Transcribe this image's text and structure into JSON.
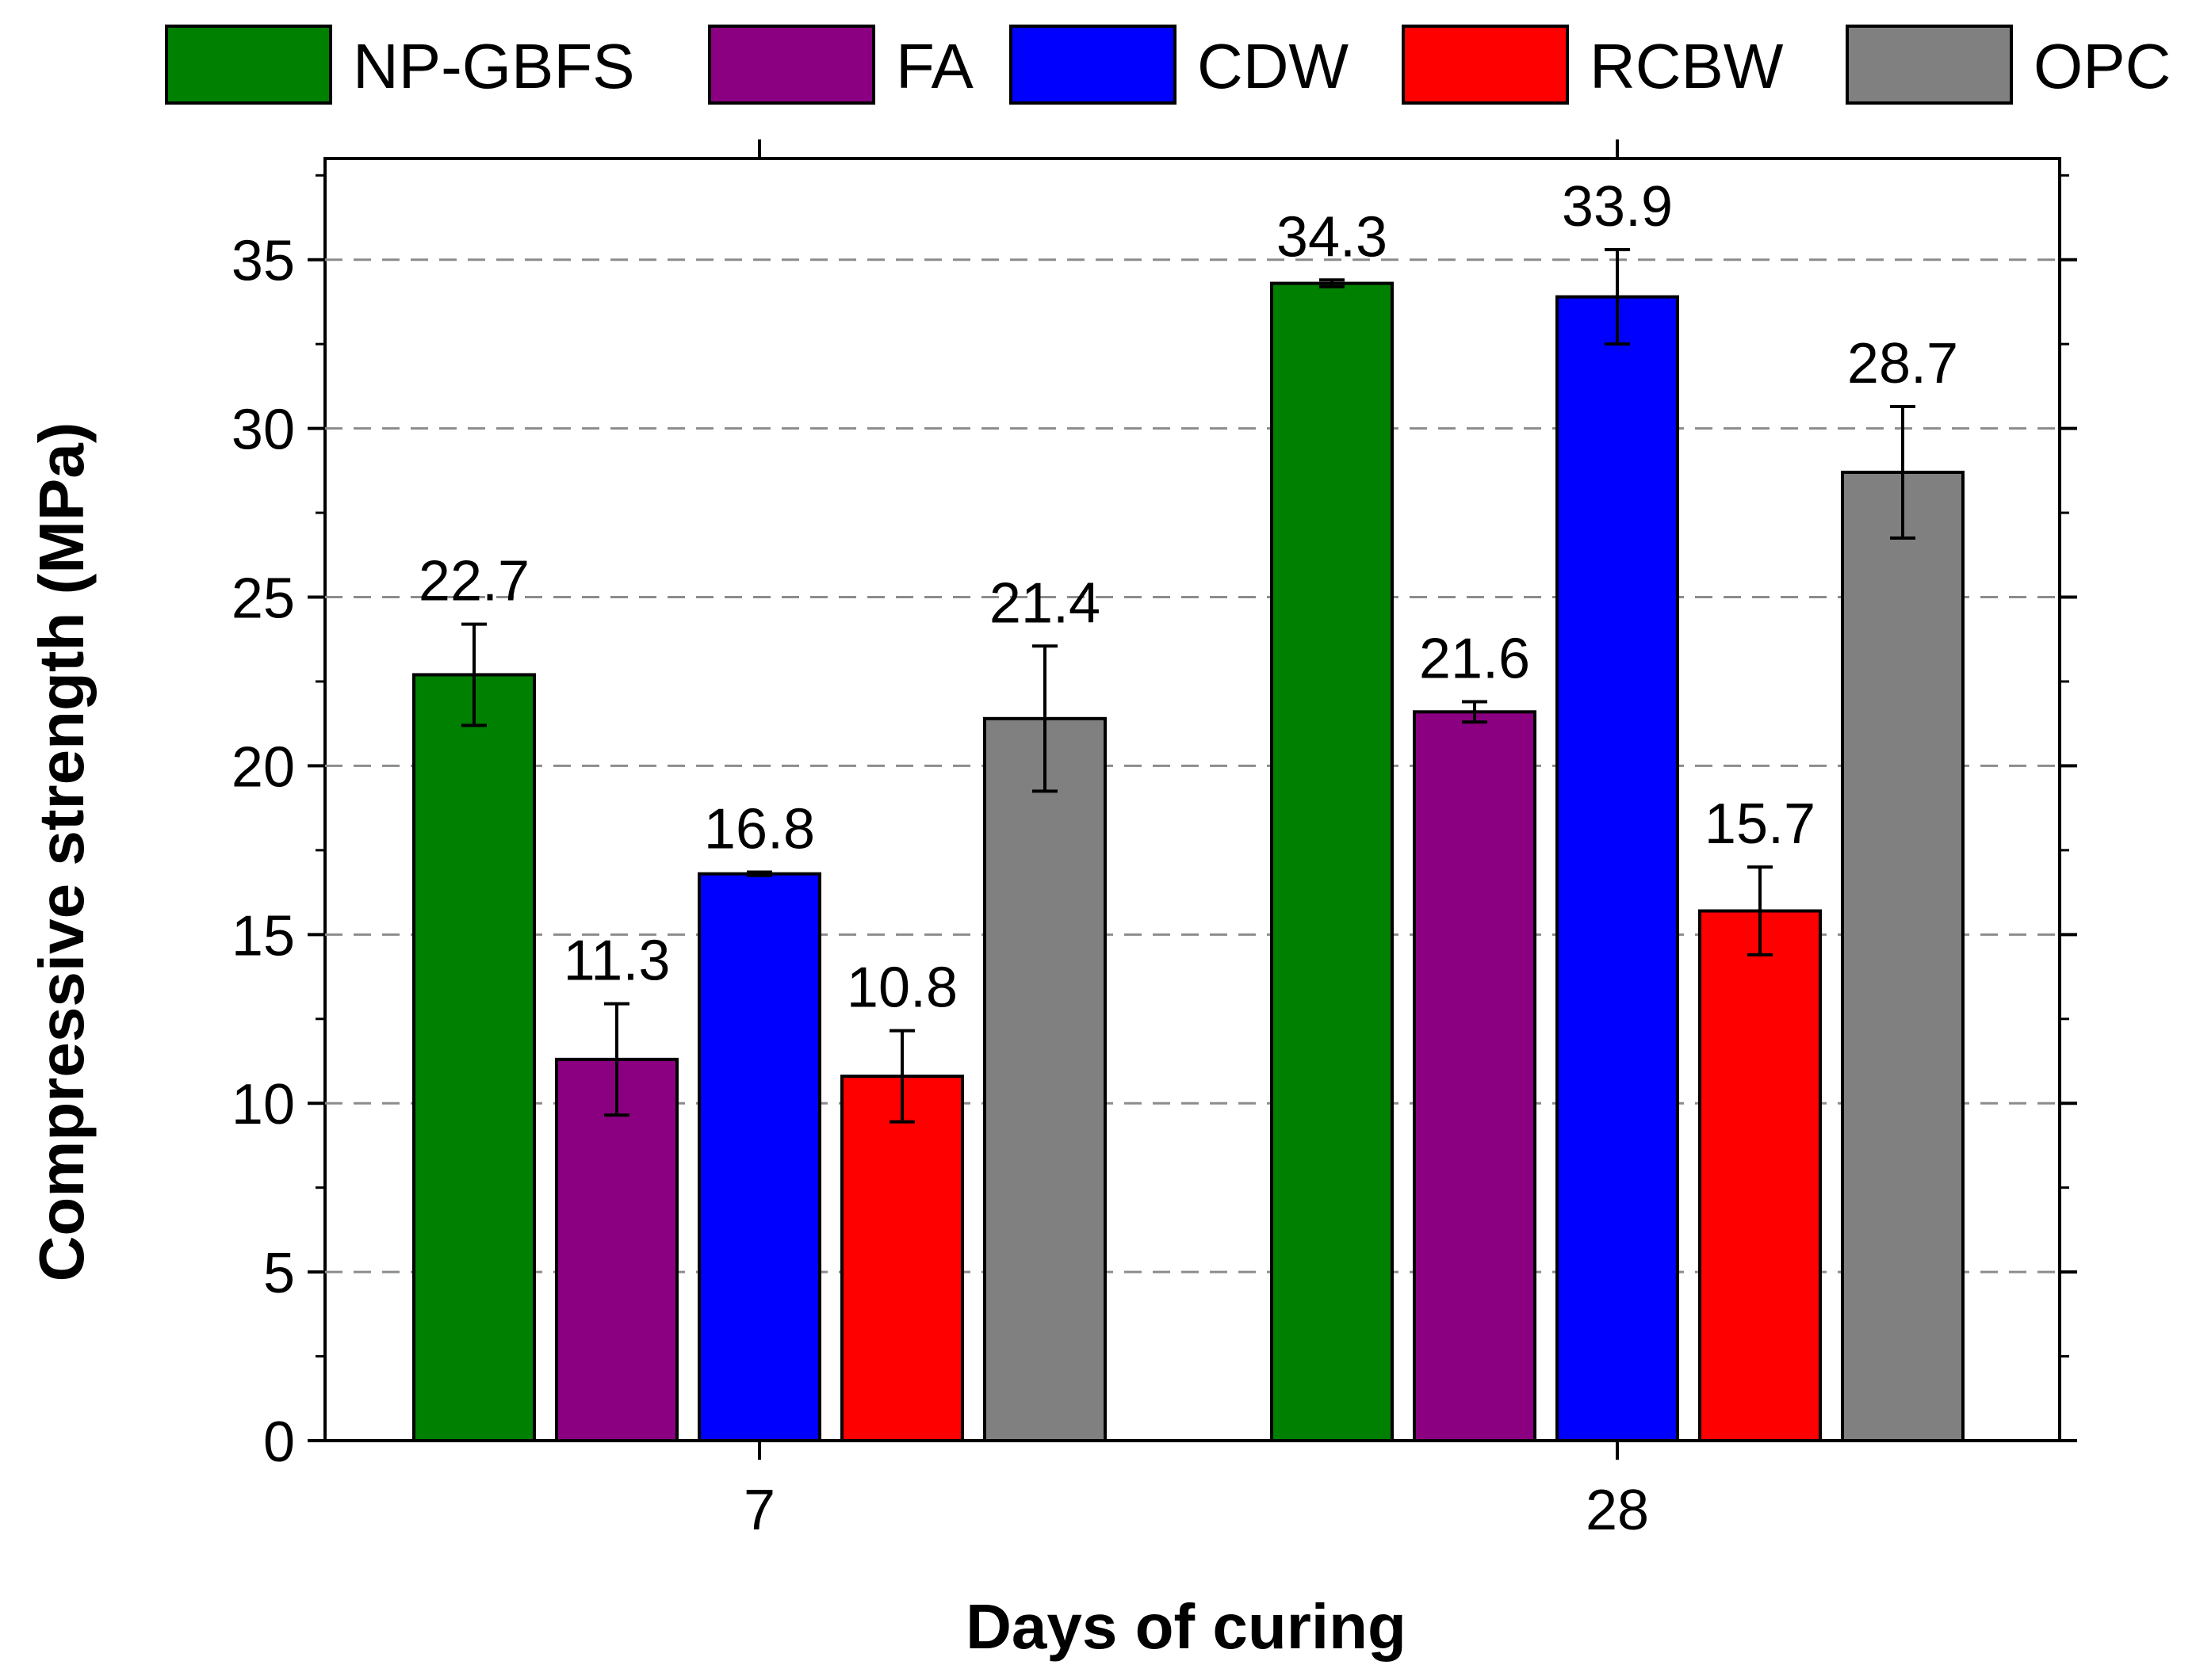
{
  "chart_data": {
    "type": "bar",
    "categories": [
      "7",
      "28"
    ],
    "series": [
      {
        "name": "NP-GBFS",
        "color": "#008000",
        "values": [
          22.7,
          34.3
        ],
        "errors": [
          1.5,
          0.1
        ]
      },
      {
        "name": "FA",
        "color": "#8B0080",
        "values": [
          11.3,
          21.6
        ],
        "errors": [
          1.65,
          0.3
        ]
      },
      {
        "name": "CDW",
        "color": "#0000FF",
        "values": [
          16.8,
          33.9
        ],
        "errors": [
          0.05,
          1.4
        ]
      },
      {
        "name": "RCBW",
        "color": "#FF0000",
        "values": [
          10.8,
          15.7
        ],
        "errors": [
          1.35,
          1.3
        ]
      },
      {
        "name": "OPC",
        "color": "#808080",
        "values": [
          21.4,
          28.7
        ],
        "errors": [
          2.15,
          1.95
        ]
      }
    ],
    "value_labels": [
      [
        "22.7",
        "34.3"
      ],
      [
        "11.3",
        "21.6"
      ],
      [
        "16.8",
        "33.9"
      ],
      [
        "10.8",
        "15.7"
      ],
      [
        "21.4",
        "28.7"
      ]
    ],
    "title": "",
    "xlabel": "Days of curing",
    "ylabel": "Compressive strength (MPa)",
    "ylim": [
      0,
      38
    ],
    "yticks": [
      0,
      5,
      10,
      15,
      20,
      25,
      30,
      35
    ],
    "grid": "horizontal dashed",
    "legend": "top"
  }
}
